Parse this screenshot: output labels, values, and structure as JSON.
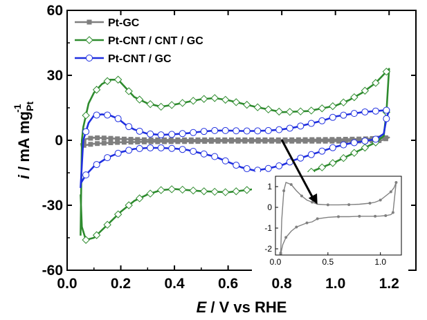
{
  "chart_data": {
    "type": "line",
    "title": "",
    "xlabel_var": "E",
    "xlabel_rest": " / V vs  RHE",
    "ylabel_var": "i",
    "ylabel_unit": " / mA mg",
    "ylabel_sub": "Pt",
    "ylabel_sup": "-1",
    "xlim": [
      0.0,
      1.3
    ],
    "ylim": [
      -60,
      60
    ],
    "xticks": [
      "0.0",
      "0.2",
      "0.4",
      "0.6",
      "0.8",
      "1.0",
      "1.2"
    ],
    "yticks": [
      "-60",
      "-30",
      "0",
      "30",
      "60"
    ],
    "grid": false,
    "legend_position": "top-left",
    "series": [
      {
        "name": "Pt-GC",
        "color": "#7f7f7f",
        "marker": "square",
        "anodic": {
          "x": [
            0.05,
            0.07,
            0.1,
            0.15,
            0.2,
            0.3,
            0.4,
            0.5,
            0.6,
            0.7,
            0.8,
            0.9,
            1.0,
            1.1,
            1.15,
            1.18,
            1.2
          ],
          "y": [
            -2,
            0.6,
            1.2,
            1.0,
            0.6,
            0.2,
            0.2,
            0.2,
            0.2,
            0.2,
            0.2,
            0.3,
            0.4,
            0.6,
            0.9,
            1.1,
            1.3
          ]
        },
        "cathodic": {
          "x": [
            1.2,
            1.17,
            1.1,
            1.0,
            0.9,
            0.8,
            0.7,
            0.6,
            0.5,
            0.4,
            0.3,
            0.2,
            0.15,
            0.1,
            0.07,
            0.05
          ],
          "y": [
            1.3,
            -0.1,
            -0.3,
            -0.4,
            -0.4,
            -0.4,
            -0.4,
            -0.4,
            -0.5,
            -0.6,
            -0.7,
            -0.9,
            -1.2,
            -1.6,
            -2.2,
            -2.5
          ]
        }
      },
      {
        "name": "Pt-CNT  / CNT / GC",
        "color": "#2e8b2e",
        "marker": "diamond",
        "anodic": {
          "x": [
            0.05,
            0.055,
            0.06,
            0.08,
            0.1,
            0.13,
            0.16,
            0.19,
            0.22,
            0.25,
            0.3,
            0.35,
            0.4,
            0.5,
            0.55,
            0.6,
            0.7,
            0.8,
            0.9,
            1.0,
            1.05,
            1.1,
            1.15,
            1.2
          ],
          "y": [
            -44,
            0,
            6,
            17,
            22,
            26,
            28,
            28,
            24,
            20,
            17,
            15.5,
            16.5,
            19,
            19.5,
            18.5,
            15.5,
            13,
            13.5,
            16,
            18.5,
            22,
            26.5,
            33
          ]
        },
        "cathodic": {
          "x": [
            1.2,
            1.19,
            1.18,
            1.15,
            1.1,
            1.0,
            0.9,
            0.8,
            0.7,
            0.6,
            0.5,
            0.4,
            0.35,
            0.3,
            0.25,
            0.2,
            0.15,
            0.1,
            0.07,
            0.055,
            0.05
          ],
          "y": [
            33,
            13,
            2,
            -1,
            -4,
            -10,
            -15,
            -19.5,
            -22.5,
            -24,
            -23.5,
            -22.5,
            -23,
            -25,
            -28,
            -33,
            -39,
            -45,
            -46,
            -40,
            -25
          ]
        }
      },
      {
        "name": "Pt-CNT  / GC",
        "color": "#1f2fe0",
        "marker": "circle",
        "anodic": {
          "x": [
            0.05,
            0.06,
            0.08,
            0.1,
            0.13,
            0.16,
            0.19,
            0.22,
            0.25,
            0.3,
            0.35,
            0.4,
            0.45,
            0.5,
            0.55,
            0.6,
            0.65,
            0.7,
            0.75,
            0.8,
            0.85,
            0.9,
            0.95,
            1.0,
            1.05,
            1.1,
            1.15,
            1.2
          ],
          "y": [
            -22,
            0,
            8,
            11.5,
            12,
            11.5,
            10,
            7,
            5,
            3,
            2.5,
            2.8,
            3.3,
            4,
            4.5,
            4.5,
            4.3,
            4.3,
            4.5,
            5,
            6,
            7.5,
            9,
            11,
            12,
            13,
            13.5,
            14
          ]
        },
        "cathodic": {
          "x": [
            1.2,
            1.19,
            1.18,
            1.15,
            1.1,
            1.05,
            1.0,
            0.95,
            0.9,
            0.85,
            0.8,
            0.75,
            0.7,
            0.65,
            0.6,
            0.55,
            0.5,
            0.45,
            0.4,
            0.35,
            0.3,
            0.25,
            0.2,
            0.15,
            0.1,
            0.07,
            0.05
          ],
          "y": [
            14,
            10,
            3,
            0.5,
            -0.5,
            -1.5,
            -3,
            -5,
            -7,
            -9,
            -11.5,
            -13,
            -14,
            -12.5,
            -10,
            -7.5,
            -6,
            -4.5,
            -3.8,
            -3.5,
            -3.5,
            -4,
            -5.5,
            -8,
            -12,
            -16,
            -20
          ]
        }
      }
    ],
    "inset": {
      "xlim": [
        0,
        1.2
      ],
      "ylim": [
        -2.3,
        1.5
      ],
      "xticks": [
        "0.0",
        "0.5",
        "1.0"
      ],
      "yticks": [
        "1",
        "0",
        "-1",
        "-2"
      ],
      "color": "#808080",
      "anodic": {
        "x": [
          0.05,
          0.06,
          0.08,
          0.1,
          0.15,
          0.2,
          0.25,
          0.3,
          0.35,
          0.4,
          0.5,
          0.6,
          0.7,
          0.8,
          0.9,
          0.95,
          1.0,
          1.05,
          1.1,
          1.13,
          1.15
        ],
        "y": [
          -2.2,
          -0.6,
          0.8,
          1.2,
          1.1,
          0.8,
          0.55,
          0.35,
          0.25,
          0.15,
          0.12,
          0.12,
          0.13,
          0.15,
          0.2,
          0.25,
          0.35,
          0.55,
          0.75,
          0.95,
          1.2
        ]
      },
      "cathodic": {
        "x": [
          1.15,
          1.12,
          1.1,
          1.05,
          1.0,
          0.95,
          0.9,
          0.8,
          0.7,
          0.6,
          0.5,
          0.4,
          0.35,
          0.3,
          0.25,
          0.2,
          0.15,
          0.1,
          0.07,
          0.05
        ],
        "y": [
          1.2,
          -0.25,
          -0.35,
          -0.4,
          -0.42,
          -0.43,
          -0.43,
          -0.43,
          -0.45,
          -0.45,
          -0.48,
          -0.55,
          -0.7,
          -0.75,
          -0.85,
          -0.95,
          -1.15,
          -1.45,
          -1.8,
          -2.25
        ]
      }
    }
  }
}
